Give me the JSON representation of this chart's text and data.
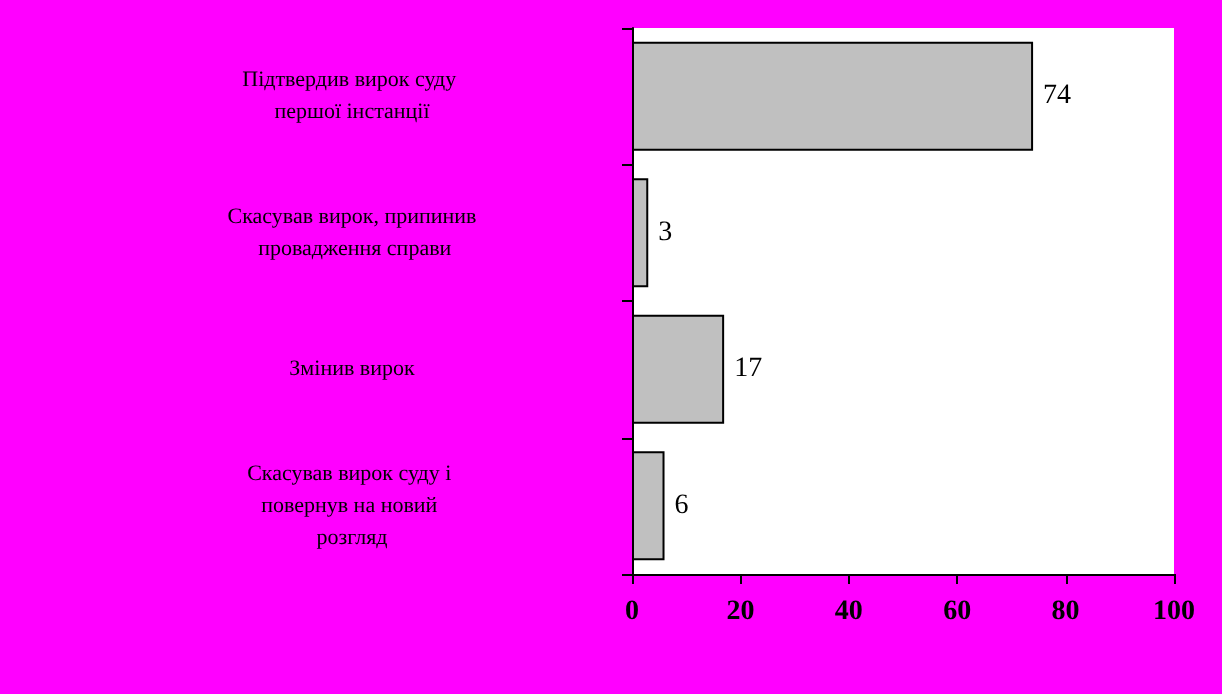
{
  "chart_data": {
    "type": "bar",
    "orientation": "horizontal",
    "categories": [
      "Підтвердив вирок суду першої інстанції",
      "Скасував вирок, припинив провадження справи",
      "Змінив вирок",
      "Скасував вирок суду і повернув на новий розгляд"
    ],
    "values": [
      74,
      3,
      17,
      6
    ],
    "color": "#c0c0c0",
    "xlim": [
      0,
      100
    ],
    "xticks": [
      0,
      20,
      40,
      60,
      80,
      100
    ],
    "grid": false,
    "data_labels": true
  }
}
